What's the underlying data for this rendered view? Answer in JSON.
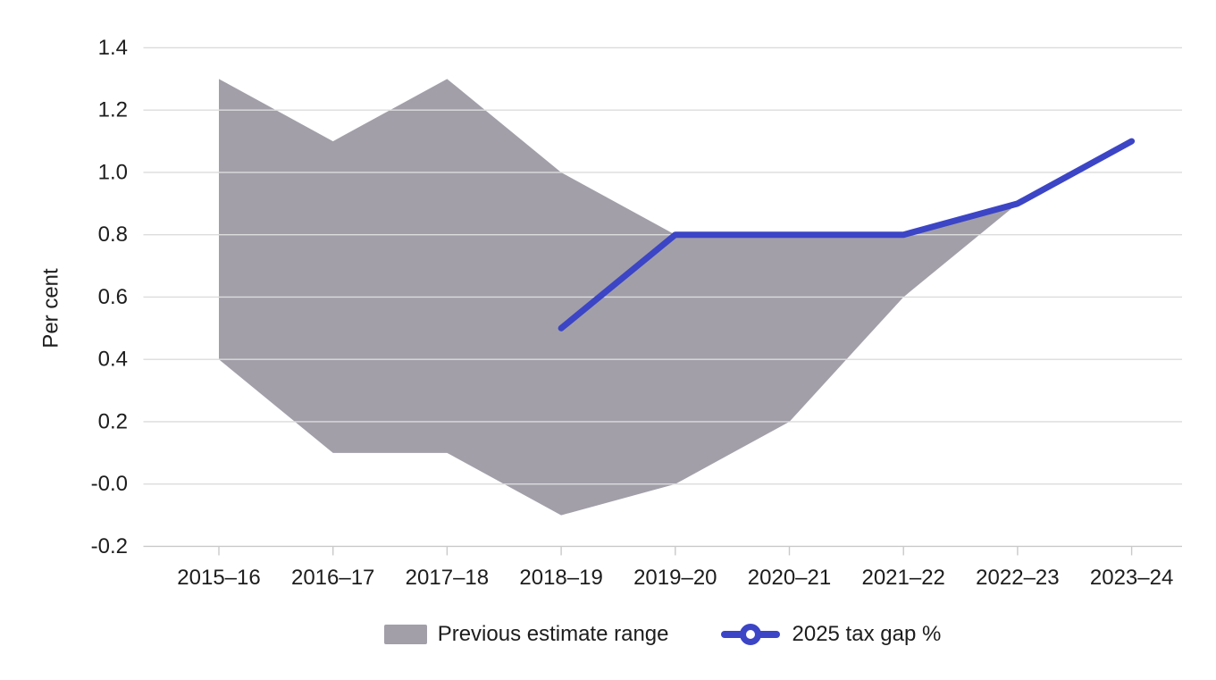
{
  "chart_data": {
    "type": "area",
    "title": "",
    "ylabel": "Per cent",
    "xlabel": "",
    "categories": [
      "2015–16",
      "2016–17",
      "2017–18",
      "2018–19",
      "2019–20",
      "2020–21",
      "2021–22",
      "2022–23",
      "2023–24"
    ],
    "series": [
      {
        "name": "Previous estimate range",
        "type": "range-area",
        "color": "#a29fa9",
        "upper": [
          1.3,
          1.1,
          1.3,
          1.0,
          0.8,
          0.8,
          0.8,
          0.9,
          null
        ],
        "lower": [
          0.4,
          0.1,
          0.1,
          -0.1,
          0.0,
          0.2,
          0.6,
          0.9,
          null
        ]
      },
      {
        "name": "2025 tax gap %",
        "type": "line",
        "color": "#3c45c5",
        "values": [
          null,
          null,
          null,
          0.5,
          0.8,
          0.8,
          0.8,
          0.9,
          1.1
        ]
      }
    ],
    "yticks": [
      "1.4",
      "1.2",
      "1.0",
      "0.8",
      "0.6",
      "0.4",
      "0.2",
      "-0.0",
      "-0.2"
    ],
    "ytick_values": [
      1.4,
      1.2,
      1.0,
      0.8,
      0.6,
      0.4,
      0.2,
      0.0,
      -0.2
    ],
    "ylim": [
      -0.2,
      1.4
    ],
    "grid": true,
    "legend_position": "bottom",
    "colors": {
      "grid": "#dcdcdc",
      "axis": "#c9c9c9",
      "text": "#1d1d1d"
    }
  }
}
